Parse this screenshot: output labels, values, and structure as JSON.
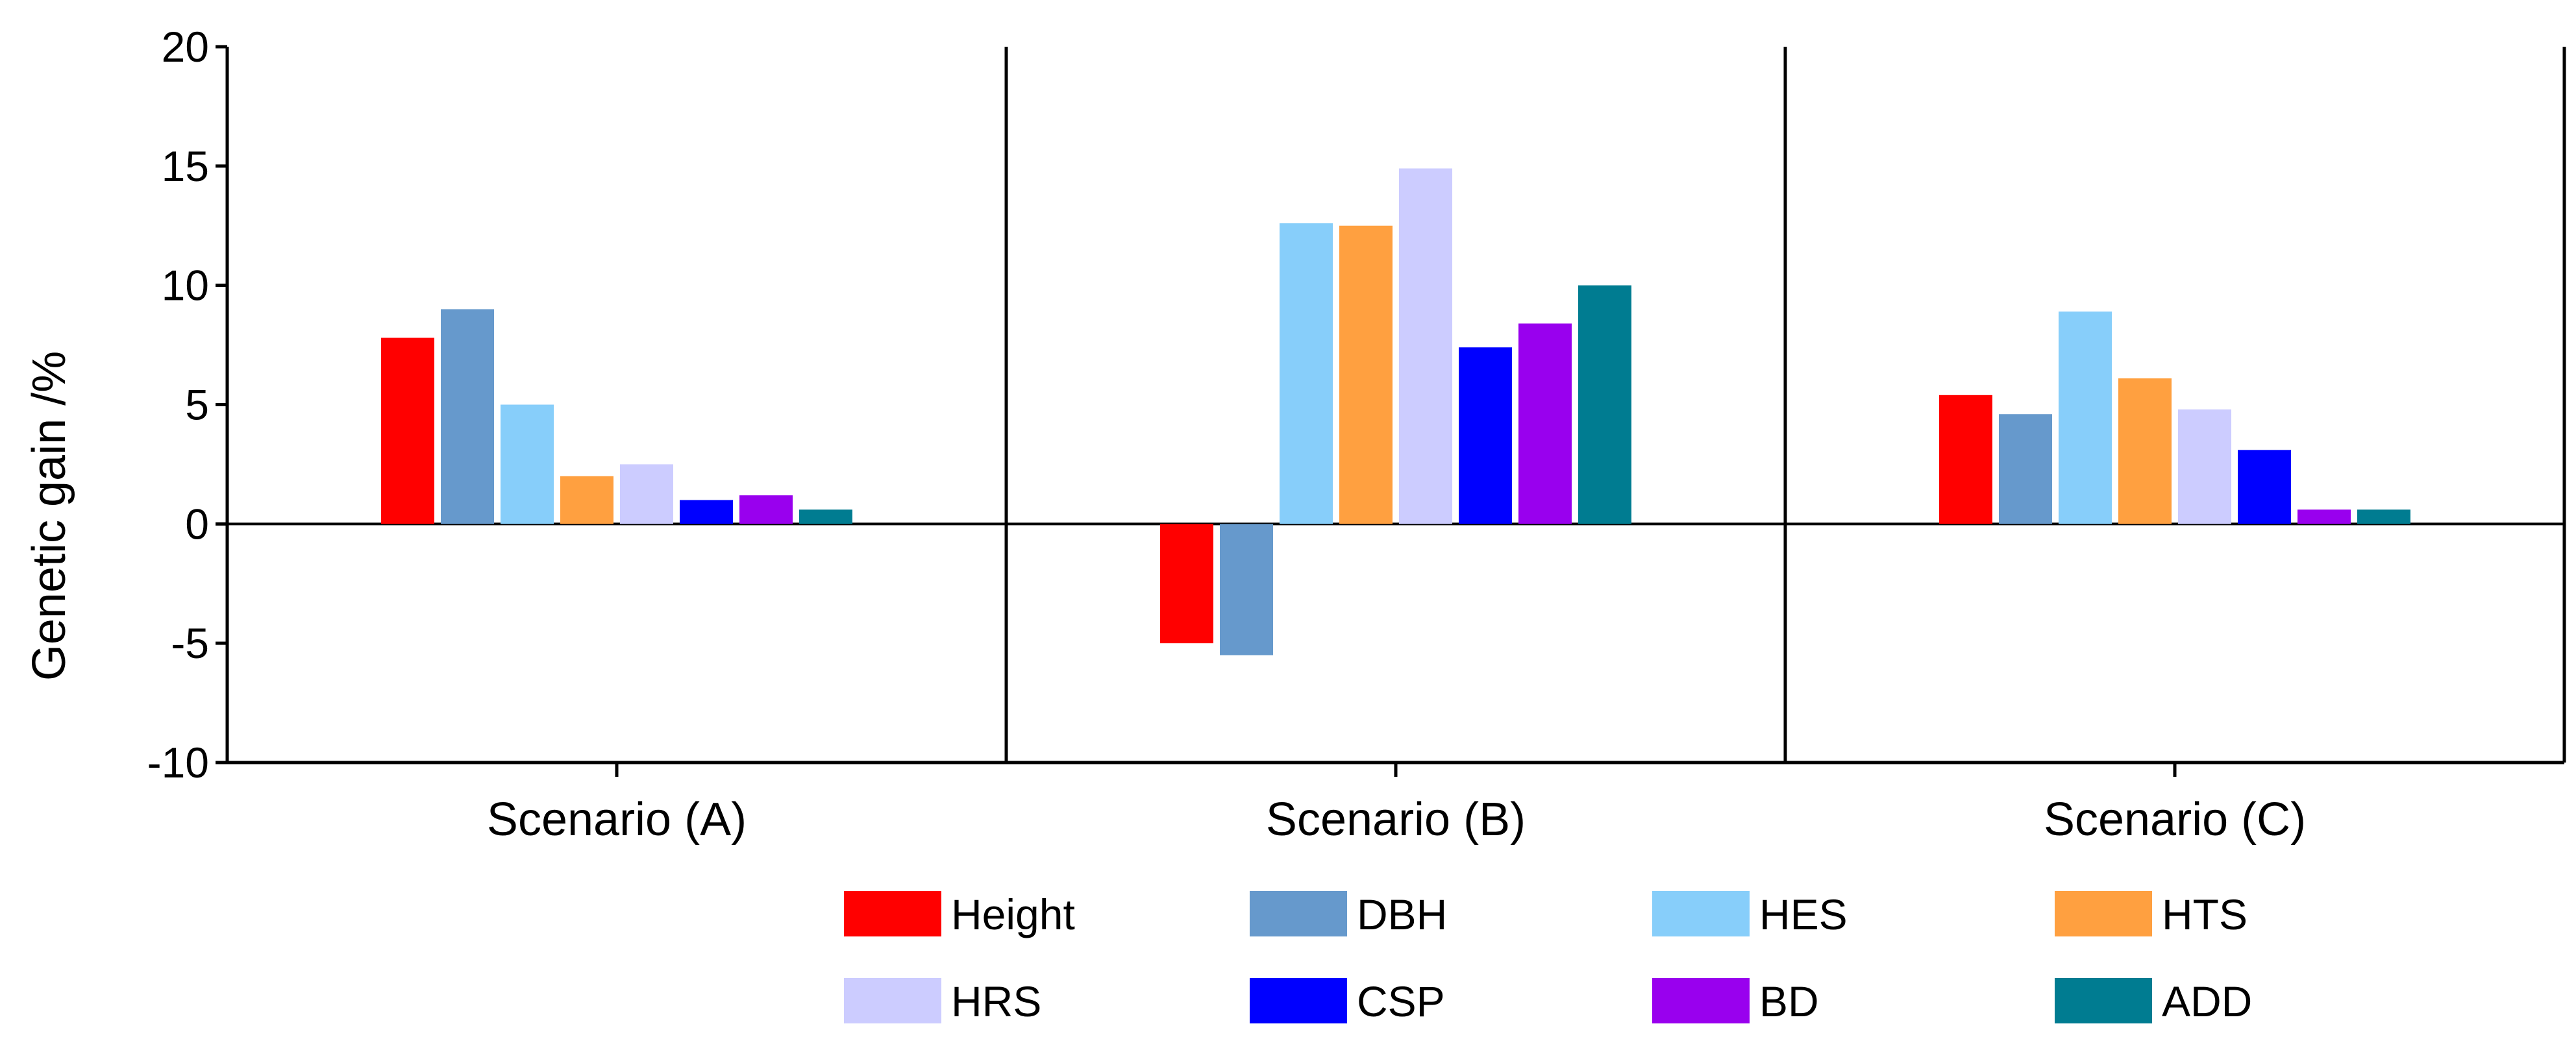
{
  "chart_data": {
    "type": "bar",
    "title": "",
    "xlabel": "",
    "ylabel": "Genetic gain /%",
    "ylim": [
      -10,
      20
    ],
    "yticks": [
      -10,
      -5,
      0,
      5,
      10,
      15,
      20
    ],
    "categories": [
      "Scenario (A)",
      "Scenario (B)",
      "Scenario (C)"
    ],
    "legend_position": "bottom",
    "series": [
      {
        "name": "Height",
        "color": "#ff0000",
        "values": [
          7.8,
          -5.0,
          5.4
        ]
      },
      {
        "name": "DBH",
        "color": "#6699cc",
        "values": [
          9.0,
          -5.5,
          4.6
        ]
      },
      {
        "name": "HES",
        "color": "#87cefa",
        "values": [
          5.0,
          12.6,
          8.9
        ]
      },
      {
        "name": "HTS",
        "color": "#ffa040",
        "values": [
          2.0,
          12.5,
          6.1
        ]
      },
      {
        "name": "HRS",
        "color": "#ccccff",
        "values": [
          2.5,
          14.9,
          4.8
        ]
      },
      {
        "name": "CSP",
        "color": "#0000ff",
        "values": [
          1.0,
          7.4,
          3.1
        ]
      },
      {
        "name": "BD",
        "color": "#9900ee",
        "values": [
          1.2,
          8.4,
          0.6
        ]
      },
      {
        "name": "ADD",
        "color": "#007c91",
        "values": [
          0.6,
          10.0,
          0.6
        ]
      }
    ]
  }
}
